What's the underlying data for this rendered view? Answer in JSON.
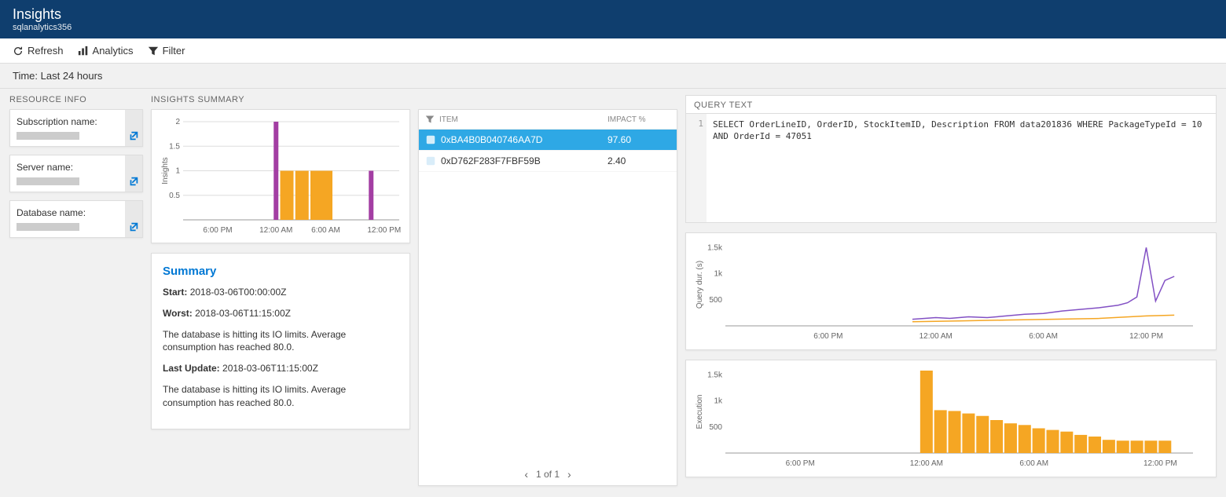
{
  "header": {
    "title": "Insights",
    "subtitle": "sqlanalytics356"
  },
  "toolbar": {
    "refresh": "Refresh",
    "analytics": "Analytics",
    "filter": "Filter"
  },
  "timebar": "Time: Last 24 hours",
  "resource_info": {
    "label": "RESOURCE INFO",
    "items": [
      {
        "label": "Subscription name:"
      },
      {
        "label": "Server name:"
      },
      {
        "label": "Database name:"
      }
    ]
  },
  "insights_summary": {
    "label": "INSIGHTS SUMMARY",
    "chart": {
      "type": "bar",
      "ylabel": "Insights",
      "ylim": [
        0,
        2
      ],
      "yticks": [
        0.5,
        1,
        1.5,
        2
      ],
      "xticks": [
        "6:00 PM",
        "12:00 AM",
        "6:00 AM",
        "12:00 PM"
      ],
      "xtick_positions": [
        0.16,
        0.43,
        0.66,
        0.93
      ],
      "colors": {
        "orange": "#f5a623",
        "purple": "#a33ea3"
      },
      "bars": [
        {
          "x": 0.43,
          "h": 2,
          "color": "#a33ea3"
        },
        {
          "x": 0.46,
          "h": 1,
          "color": "#f5a623"
        },
        {
          "x": 0.48,
          "h": 1,
          "color": "#f5a623"
        },
        {
          "x": 0.5,
          "h": 1,
          "color": "#f5a623"
        },
        {
          "x": 0.53,
          "h": 1,
          "color": "#f5a623"
        },
        {
          "x": 0.55,
          "h": 1,
          "color": "#f5a623"
        },
        {
          "x": 0.57,
          "h": 1,
          "color": "#f5a623"
        },
        {
          "x": 0.6,
          "h": 1,
          "color": "#f5a623"
        },
        {
          "x": 0.62,
          "h": 1,
          "color": "#f5a623"
        },
        {
          "x": 0.64,
          "h": 1,
          "color": "#f5a623"
        },
        {
          "x": 0.66,
          "h": 1,
          "color": "#f5a623"
        },
        {
          "x": 0.68,
          "h": 1,
          "color": "#f5a623"
        },
        {
          "x": 0.87,
          "h": 1,
          "color": "#a33ea3"
        }
      ]
    },
    "summary": {
      "title": "Summary",
      "start_label": "Start:",
      "start": "2018-03-06T00:00:00Z",
      "worst_label": "Worst:",
      "worst": "2018-03-06T11:15:00Z",
      "msg1": "The database is hitting its IO limits. Average consumption has reached 80.0.",
      "update_label": "Last Update:",
      "update": "2018-03-06T11:15:00Z",
      "msg2": "The database is hitting its IO limits. Average consumption has reached 80.0."
    }
  },
  "item_list": {
    "headers": {
      "item": "ITEM",
      "impact": "IMPACT %"
    },
    "rows": [
      {
        "id": "0xBA4B0B040746AA7D",
        "impact": "97.60",
        "selected": true,
        "icon_color": "#0078d4"
      },
      {
        "id": "0xD762F283F7FBF59B",
        "impact": "2.40",
        "selected": false,
        "icon_color": "#0078d4"
      }
    ],
    "pager": "1 of 1"
  },
  "query_text": {
    "label": "QUERY TEXT",
    "line_no": "1",
    "code": "SELECT OrderLineID, OrderID, StockItemID, Description FROM data201836 WHERE PackageTypeId = 10 AND OrderId = 47051"
  },
  "line_chart": {
    "type": "line",
    "ylabel": "Query dur. (s)",
    "yticks": [
      500,
      "1k",
      "1.5k"
    ],
    "xticks": [
      "6:00 PM",
      "12:00 AM",
      "6:00 AM",
      "12:00 PM"
    ],
    "xtick_positions": [
      0.22,
      0.45,
      0.68,
      0.9
    ],
    "colors": {
      "purple": "#8250c4",
      "orange": "#f5a623"
    },
    "purple_points": [
      [
        0.4,
        0.08
      ],
      [
        0.45,
        0.1
      ],
      [
        0.48,
        0.09
      ],
      [
        0.52,
        0.11
      ],
      [
        0.56,
        0.1
      ],
      [
        0.6,
        0.12
      ],
      [
        0.64,
        0.14
      ],
      [
        0.68,
        0.15
      ],
      [
        0.72,
        0.18
      ],
      [
        0.76,
        0.2
      ],
      [
        0.8,
        0.22
      ],
      [
        0.84,
        0.25
      ],
      [
        0.86,
        0.28
      ],
      [
        0.88,
        0.35
      ],
      [
        0.9,
        0.95
      ],
      [
        0.92,
        0.3
      ],
      [
        0.94,
        0.55
      ],
      [
        0.96,
        0.6
      ]
    ],
    "orange_points": [
      [
        0.4,
        0.05
      ],
      [
        0.5,
        0.06
      ],
      [
        0.6,
        0.07
      ],
      [
        0.7,
        0.08
      ],
      [
        0.8,
        0.09
      ],
      [
        0.9,
        0.12
      ],
      [
        0.96,
        0.13
      ]
    ]
  },
  "bar_chart": {
    "type": "bar",
    "ylabel": "Execution",
    "yticks": [
      500,
      "1k",
      "1.5k"
    ],
    "xticks": [
      "6:00 PM",
      "12:00 AM",
      "6:00 AM",
      "12:00 PM"
    ],
    "xtick_positions": [
      0.16,
      0.43,
      0.66,
      0.93
    ],
    "color": "#f5a623",
    "bars": [
      {
        "x": 0.43,
        "h": 1.0
      },
      {
        "x": 0.46,
        "h": 0.52
      },
      {
        "x": 0.49,
        "h": 0.51
      },
      {
        "x": 0.52,
        "h": 0.48
      },
      {
        "x": 0.55,
        "h": 0.45
      },
      {
        "x": 0.58,
        "h": 0.4
      },
      {
        "x": 0.61,
        "h": 0.36
      },
      {
        "x": 0.64,
        "h": 0.34
      },
      {
        "x": 0.67,
        "h": 0.3
      },
      {
        "x": 0.7,
        "h": 0.28
      },
      {
        "x": 0.73,
        "h": 0.26
      },
      {
        "x": 0.76,
        "h": 0.22
      },
      {
        "x": 0.79,
        "h": 0.2
      },
      {
        "x": 0.82,
        "h": 0.16
      },
      {
        "x": 0.85,
        "h": 0.15
      },
      {
        "x": 0.88,
        "h": 0.15
      },
      {
        "x": 0.91,
        "h": 0.15
      },
      {
        "x": 0.94,
        "h": 0.15
      }
    ]
  }
}
